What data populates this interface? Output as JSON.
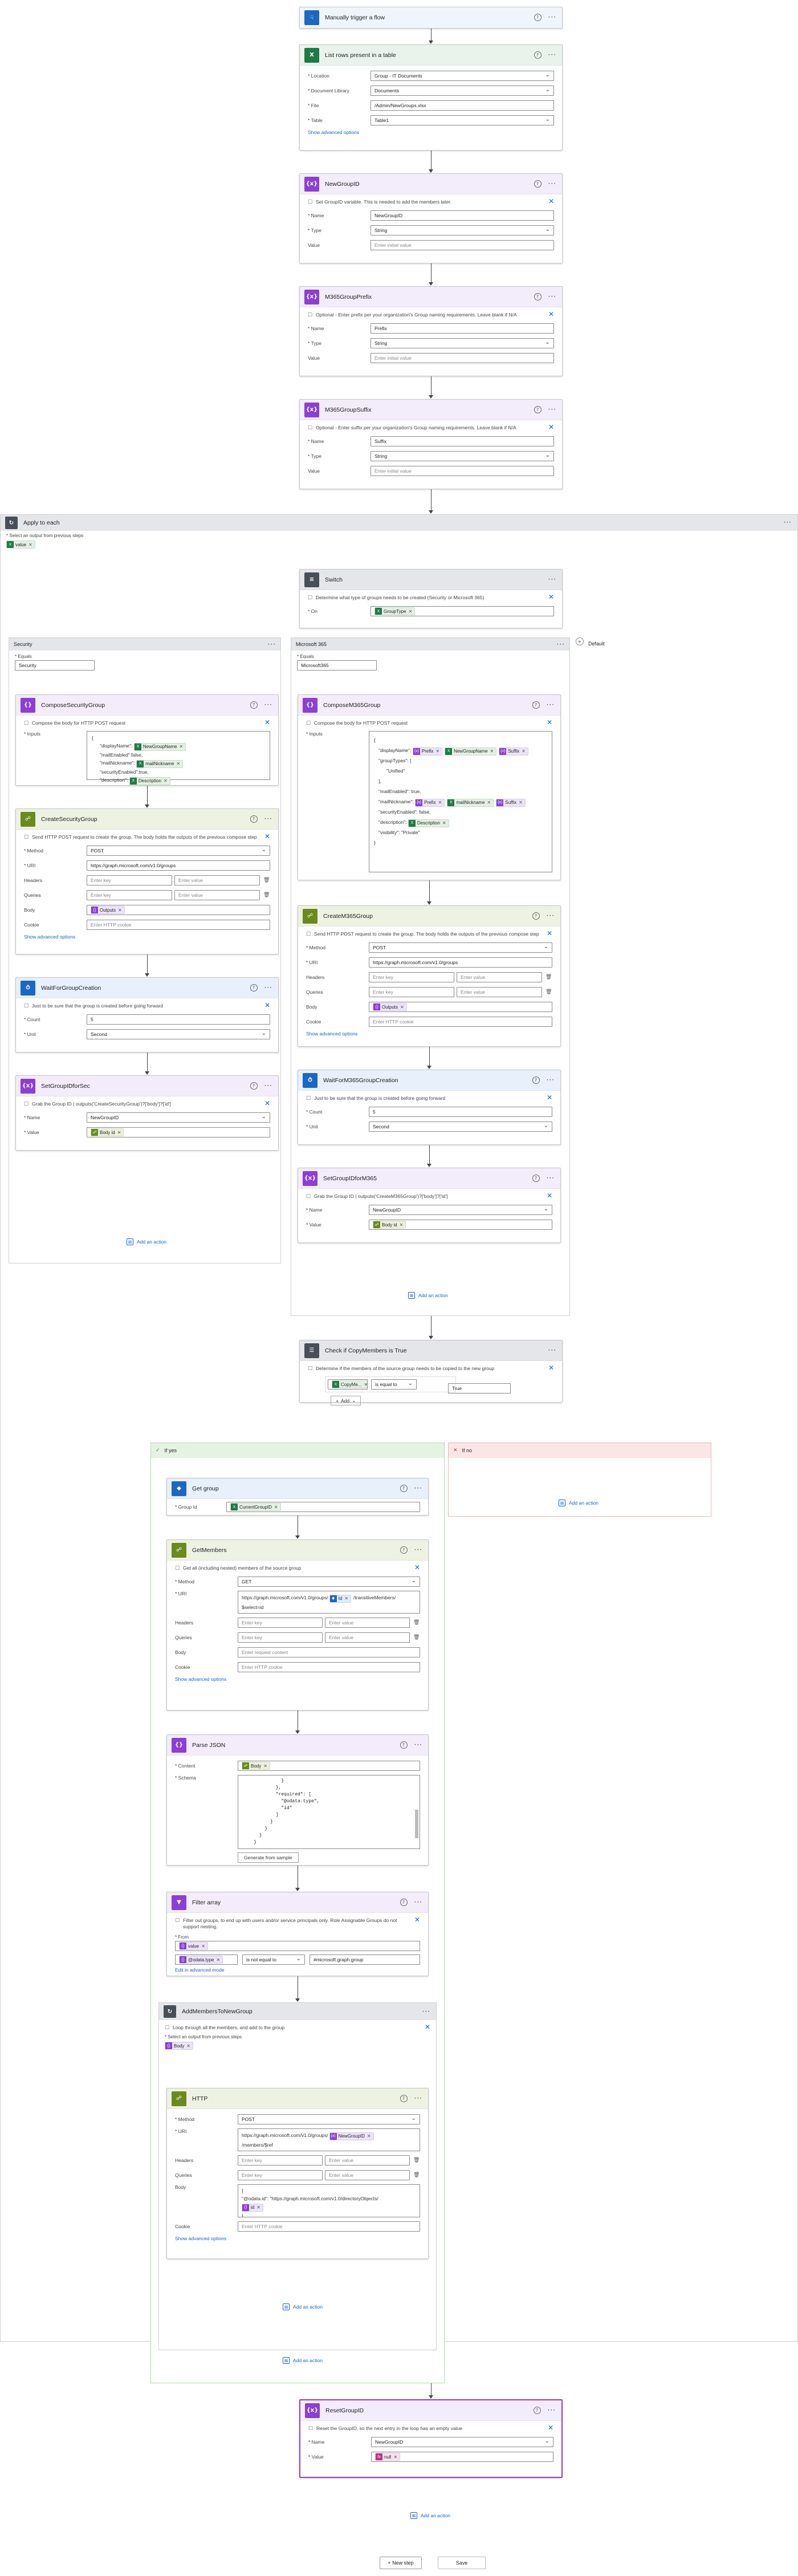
{
  "colors": {
    "trigger": "#1b67c4",
    "excel": "#1e7b45",
    "variable": "#8b3fd4",
    "control": "#484f58",
    "http": "#6a8a1e",
    "wait": "#1b67c4",
    "switch": "#484f58",
    "condition": "#484f58",
    "graph": "#1b67c4",
    "loop": "#484f58",
    "parse": "#8b3fd4"
  },
  "trigger": {
    "title": "Manually trigger a flow",
    "icon": "hand-icon"
  },
  "list_rows": {
    "title": "List rows present in a table",
    "location_label": "* Location",
    "location": "Group - IT Documents",
    "library_label": "* Document Library",
    "library": "Documents",
    "file_label": "* File",
    "file": "/Admin/NewGroups.xlsx",
    "table_label": "* Table",
    "table": "Table1",
    "adv": "Show advanced options"
  },
  "var_newgroupid": {
    "title": "NewGroupID",
    "desc": "Set GroupID variable. This is needed to add the members later.",
    "name_label": "* Name",
    "name": "NewGroupID",
    "type_label": "* Type",
    "type": "String",
    "value_label": "Value",
    "value_ph": "Enter initial value"
  },
  "var_prefix": {
    "title": "M365GroupPrefix",
    "desc": "Optional - Enter prefix per your organization's Group naming requirements. Leave blank if N/A",
    "name_label": "* Name",
    "name": "Prefix",
    "type_label": "* Type",
    "type": "String",
    "value_label": "Value",
    "value_ph": "Enter initial value"
  },
  "var_suffix": {
    "title": "M365GroupSuffix",
    "desc": "Optional - Enter suffix per your organization's Group naming requirements. Leave blank if N/A",
    "name_label": "* Name",
    "name": "Suffix",
    "type_label": "* Type",
    "type": "String",
    "value_label": "Value",
    "value_ph": "Enter initial value"
  },
  "apply": {
    "title": "Apply to each",
    "select_label": "* Select an output from previous steps",
    "token": "value"
  },
  "switch": {
    "title": "Switch",
    "desc": "Determine what type of groups needs to be created (Security or Microsoft 365)",
    "on_label": "* On",
    "token": "GroupType"
  },
  "case_security": {
    "title": "Security",
    "equals_label": "* Equals",
    "equals": "Security"
  },
  "case_m365": {
    "title": "Microsoft 365",
    "equals_label": "* Equals",
    "equals": "Microsoft365"
  },
  "case_default": {
    "title": "Default"
  },
  "compose_sec": {
    "title": "ComposeSecurityGroup",
    "desc": "Compose the body for HTTP POST request",
    "inputs_label": "* Inputs",
    "l1": "{",
    "l2": "\"displayName\":",
    "t2": "NewGroupName",
    "l3": "\"mailEnabled\":false,",
    "l4": "\"mailNickname\":",
    "t4": "mailNickname",
    "l5": "\"securityEnabled\":true,",
    "l6": "\"description\":",
    "t6": "Description",
    "l7": "}"
  },
  "create_sec": {
    "title": "CreateSecurityGroup",
    "desc": "Send HTTP POST request to create the group. The body holds the outputs of the previous compose step",
    "method_label": "* Method",
    "method": "POST",
    "uri_label": "* URI",
    "uri": "https://graph.microsoft.com/v1.0/groups",
    "headers_label": "Headers",
    "queries_label": "Queries",
    "key_ph": "Enter key",
    "val_ph": "Enter value",
    "body_label": "Body",
    "body_token": "Outputs",
    "cookie_label": "Cookie",
    "cookie_ph": "Enter HTTP cookie",
    "adv": "Show advanced options"
  },
  "wait_sec": {
    "title": "WaitForGroupCreation",
    "desc": "Just to be sure that the group is created before going forward",
    "count_label": "* Count",
    "count": "5",
    "unit_label": "* Unit",
    "unit": "Second"
  },
  "setid_sec": {
    "title": "SetGroupIDforSec",
    "desc": "Grab the Group ID | outputs('CreateSecurityGroup')?['body']?['id']",
    "name_label": "* Name",
    "name": "NewGroupID",
    "value_label": "* Value",
    "token": "Body id"
  },
  "compose_m365": {
    "title": "ComposeM365Group",
    "desc": "Compose the body for HTTP POST request",
    "inputs_label": "* Inputs",
    "l1": "{",
    "l2": "\"displayName\":",
    "tp": "Prefix",
    "t2": "NewGroupName",
    "ts": "Suffix",
    "l3": "\"groupTypes\": [",
    "l3b": "\"Unified\"",
    "l3c": "],",
    "l4": "\"mailEnabled\": true,",
    "l5": "\"mailNickname\":",
    "t5": "mailNickname",
    "l6": "\"securityEnabled\": false,",
    "l7": "\"description\":",
    "t7": "Description",
    "l8": "\"visibility\": \"Private\"",
    "l9": "}"
  },
  "create_m365": {
    "title": "CreateM365Group",
    "desc": "Send HTTP POST request to create the group. The body holds the outputs of the previous compose step",
    "method_label": "* Method",
    "method": "POST",
    "uri_label": "* URI",
    "uri": "https://graph.microsoft.com/v1.0/groups",
    "headers_label": "Headers",
    "queries_label": "Queries",
    "key_ph": "Enter key",
    "val_ph": "Enter value",
    "body_label": "Body",
    "body_token": "Outputs",
    "cookie_label": "Cookie",
    "cookie_ph": "Enter HTTP cookie",
    "adv": "Show advanced options"
  },
  "wait_m365": {
    "title": "WaitForM365GroupCreation",
    "desc": "Just to be sure that the group is created before going forward",
    "count_label": "* Count",
    "count": "5",
    "unit_label": "* Unit",
    "unit": "Second"
  },
  "setid_m365": {
    "title": "SetGroupIDforM365",
    "desc": "Grab the Group ID | outputs('CreateM365Group')?['body']?['id']",
    "name_label": "* Name",
    "name": "NewGroupID",
    "value_label": "* Value",
    "token": "Body id"
  },
  "add_action": "Add an action",
  "cond": {
    "title": "Check if CopyMembers is True",
    "desc": "Determine if the members of the source group needs to be copied to the new group",
    "token": "CopyMe...",
    "op": "is equal to",
    "val": "True",
    "add": "Add"
  },
  "if_yes": "If yes",
  "if_no": "If no",
  "get_group": {
    "title": "Get group",
    "label": "* Group Id",
    "token": "CurrentGroupID"
  },
  "get_members": {
    "title": "GetMembers",
    "desc": "Get all (including nested) members of the source group",
    "method_label": "* Method",
    "method": "GET",
    "uri_label": "* URI",
    "uri1": "https://graph.microsoft.com/v1.0/groups/",
    "uri_tok": "Id",
    "uri2": "/transitiveMembers/",
    "uri3": "$select=id",
    "headers_label": "Headers",
    "queries_label": "Queries",
    "key_ph": "Enter key",
    "val_ph": "Enter value",
    "body_label": "Body",
    "body_ph": "Enter request content",
    "cookie_label": "Cookie",
    "cookie_ph": "Enter HTTP cookie",
    "adv": "Show advanced options"
  },
  "parse": {
    "title": "Parse JSON",
    "content_label": "* Content",
    "token": "Body",
    "schema_label": "* Schema",
    "s1": "              }",
    "s2": "            },",
    "s3": "            \"required\": [",
    "s4": "              \"@odata.type\",",
    "s5": "              \"id\"",
    "s6": "            ]",
    "s7": "          }",
    "s8": "        }",
    "s9": "      }",
    "s10": "    }",
    "s11": "}",
    "gen": "Generate from sample"
  },
  "filter": {
    "title": "Filter array",
    "desc": "Filter out groups, to end up with users and/or service principals only. Role Assignable Groups do not support nesting.",
    "from_label": "* From",
    "token": "value",
    "t2": "@odata.type",
    "op": "is not equal to",
    "val": "#microsoft.graph.group",
    "adv": "Edit in advanced mode"
  },
  "add_members": {
    "title": "AddMembersToNewGroup",
    "desc": "Loop through all the members, and add to the group",
    "select_label": "* Select an output from previous steps",
    "token": "Body"
  },
  "http": {
    "title": "HTTP",
    "method_label": "* Method",
    "method": "POST",
    "uri_label": "* URI",
    "uri1": "https://graph.microsoft.com/v1.0/groups/",
    "uri_tok": "NewGroupID",
    "uri2": "/members/$ref",
    "headers_label": "Headers",
    "queries_label": "Queries",
    "key_ph": "Enter key",
    "val_ph": "Enter value",
    "body_label": "Body",
    "b1": "{",
    "b2": "\"@odata.id\": \"https://graph.microsoft.com/v1.0/directoryObjects/",
    "b_tok": "id",
    "b3": "}",
    "cookie_label": "Cookie",
    "cookie_ph": "Enter HTTP cookie",
    "adv": "Show advanced options"
  },
  "reset": {
    "title": "ResetGroupID",
    "desc": "Reset the GroupID, so the next entry in the loop has an empty value",
    "name_label": "* Name",
    "name": "NewGroupID",
    "value_label": "* Value",
    "token": "null"
  },
  "footer": {
    "new_step": "+ New step",
    "save": "Save"
  }
}
